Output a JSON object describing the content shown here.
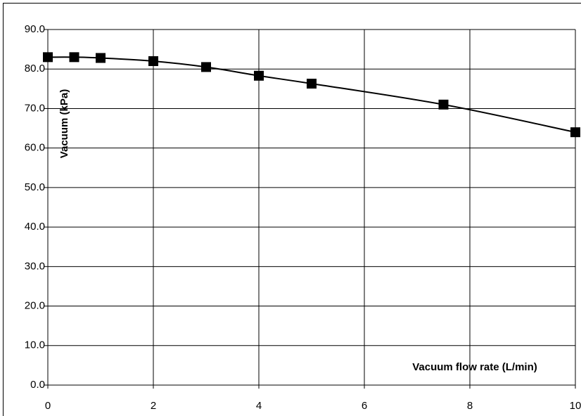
{
  "chart_data": {
    "type": "line",
    "x_label": "Vacuum flow rate (L/min)",
    "y_label": "Vacuum (kPa)",
    "x": [
      0,
      0.5,
      1,
      2,
      3,
      4,
      5,
      7.5,
      10
    ],
    "series": [
      {
        "name": "Vacuum",
        "color": "#000000",
        "values": [
          83,
          83,
          82.8,
          82,
          80.5,
          78.3,
          76.3,
          71,
          64
        ]
      }
    ],
    "xlim": [
      0,
      10
    ],
    "xticks": [
      0,
      2,
      4,
      6,
      8,
      10
    ],
    "ylim": [
      0,
      90
    ],
    "yticks": [
      {
        "value": 0,
        "label": "0.0"
      },
      {
        "value": 10,
        "label": "10.0"
      },
      {
        "value": 20,
        "label": "20.0"
      },
      {
        "value": 30,
        "label": "30.0"
      },
      {
        "value": 40,
        "label": "40.0"
      },
      {
        "value": 50,
        "label": "50.0"
      },
      {
        "value": 60,
        "label": "60.0"
      },
      {
        "value": 70,
        "label": "70.0"
      },
      {
        "value": 80,
        "label": "80.0"
      },
      {
        "value": 90,
        "label": "90.0"
      }
    ],
    "grid": true
  }
}
